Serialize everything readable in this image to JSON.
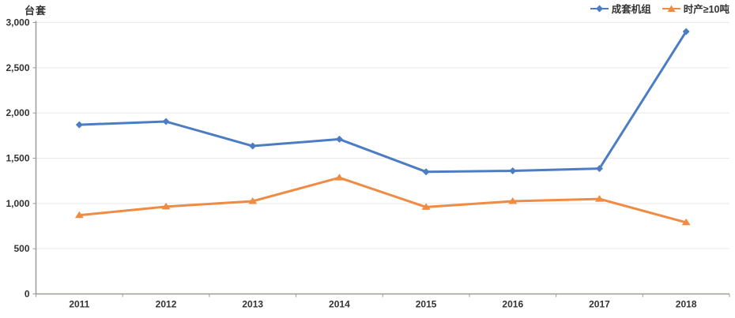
{
  "chart_data": {
    "type": "line",
    "title": "",
    "xlabel": "",
    "ylabel": "台套",
    "categories": [
      "2011",
      "2012",
      "2013",
      "2014",
      "2015",
      "2016",
      "2017",
      "2018"
    ],
    "series": [
      {
        "name": "成套机组",
        "color": "#4c7dc4",
        "marker": "diamond",
        "values": [
          1870,
          1905,
          1635,
          1710,
          1350,
          1360,
          1385,
          2900
        ]
      },
      {
        "name": "时产≥10吨",
        "color": "#ef8b42",
        "marker": "triangle",
        "values": [
          870,
          965,
          1025,
          1285,
          960,
          1025,
          1050,
          790
        ]
      }
    ],
    "ylim": [
      0,
      3000
    ],
    "ytick_step": 500,
    "ytick_labels": [
      "0",
      "500",
      "1,000",
      "1,500",
      "2,000",
      "2,500",
      "3,000"
    ],
    "grid": true,
    "legend_position": "top-right"
  },
  "colors": {
    "axis_line": "#a09a96",
    "grid_line": "#e9e9e9",
    "tick_text": "#333333",
    "background": "#ffffff"
  }
}
